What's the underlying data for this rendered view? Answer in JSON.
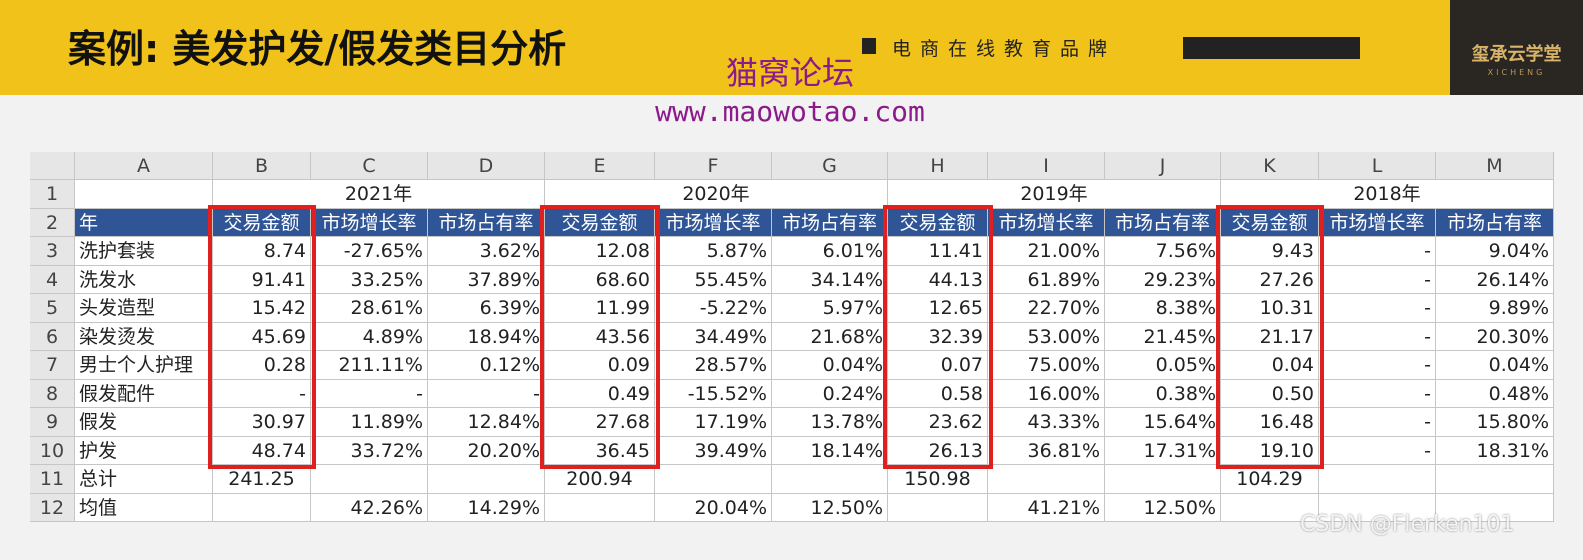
{
  "header": {
    "title": "案例: 美发护发/假发类目分析",
    "tagline": "电商在线教育品牌",
    "logo": "玺承云学堂",
    "logo_sub": "XICHENG"
  },
  "watermark": {
    "name": "猫窝论坛",
    "url": "www.maowotao.com",
    "credit": "CSDN @Flerken101"
  },
  "sheet": {
    "columns": [
      "A",
      "B",
      "C",
      "D",
      "E",
      "F",
      "G",
      "H",
      "I",
      "J",
      "K",
      "L",
      "M"
    ],
    "row_numbers": [
      1,
      2,
      3,
      4,
      5,
      6,
      7,
      8,
      9,
      10,
      11,
      12
    ],
    "header_label": "年",
    "metric_headers": [
      "交易金额",
      "市场增长率",
      "市场占有率",
      "交易金额",
      "市场增长率",
      "市场占有率",
      "交易金额",
      "市场增长率",
      "市场占有率",
      "交易金额",
      "市场增长率",
      "市场占有率"
    ],
    "years": [
      {
        "year": "2021年",
        "total": "241.25",
        "growth_avg": "42.26%",
        "share_avg": "14.29%"
      },
      {
        "year": "2020年",
        "total": "200.94",
        "growth_avg": "20.04%",
        "share_avg": "12.50%"
      },
      {
        "year": "2019年",
        "total": "150.98",
        "growth_avg": "41.21%",
        "share_avg": "12.50%"
      },
      {
        "year": "2018年",
        "total": "104.29"
      }
    ],
    "rows": [
      {
        "label": "洗护套装",
        "cells": [
          "8.74",
          "-27.65%",
          "3.62%",
          "12.08",
          "5.87%",
          "6.01%",
          "11.41",
          "21.00%",
          "7.56%",
          "9.43",
          "-",
          "9.04%"
        ]
      },
      {
        "label": "洗发水",
        "cells": [
          "91.41",
          "33.25%",
          "37.89%",
          "68.60",
          "55.45%",
          "34.14%",
          "44.13",
          "61.89%",
          "29.23%",
          "27.26",
          "-",
          "26.14%"
        ]
      },
      {
        "label": "头发造型",
        "cells": [
          "15.42",
          "28.61%",
          "6.39%",
          "11.99",
          "-5.22%",
          "5.97%",
          "12.65",
          "22.70%",
          "8.38%",
          "10.31",
          "-",
          "9.89%"
        ]
      },
      {
        "label": "染发烫发",
        "cells": [
          "45.69",
          "4.89%",
          "18.94%",
          "43.56",
          "34.49%",
          "21.68%",
          "32.39",
          "53.00%",
          "21.45%",
          "21.17",
          "-",
          "20.30%"
        ]
      },
      {
        "label": "男士个人护理",
        "cells": [
          "0.28",
          "211.11%",
          "0.12%",
          "0.09",
          "28.57%",
          "0.04%",
          "0.07",
          "75.00%",
          "0.05%",
          "0.04",
          "-",
          "0.04%"
        ]
      },
      {
        "label": "假发配件",
        "cells": [
          "-",
          "-",
          "-",
          "0.49",
          "-15.52%",
          "0.24%",
          "0.58",
          "16.00%",
          "0.38%",
          "0.50",
          "-",
          "0.48%"
        ]
      },
      {
        "label": "假发",
        "cells": [
          "30.97",
          "11.89%",
          "12.84%",
          "27.68",
          "17.19%",
          "13.78%",
          "23.62",
          "43.33%",
          "15.64%",
          "16.48",
          "-",
          "15.80%"
        ]
      },
      {
        "label": "护发",
        "cells": [
          "48.74",
          "33.72%",
          "20.20%",
          "36.45",
          "39.49%",
          "18.14%",
          "26.13",
          "36.81%",
          "17.31%",
          "19.10",
          "-",
          "18.31%"
        ]
      }
    ],
    "total_label": "总计",
    "average_label": "均值"
  }
}
